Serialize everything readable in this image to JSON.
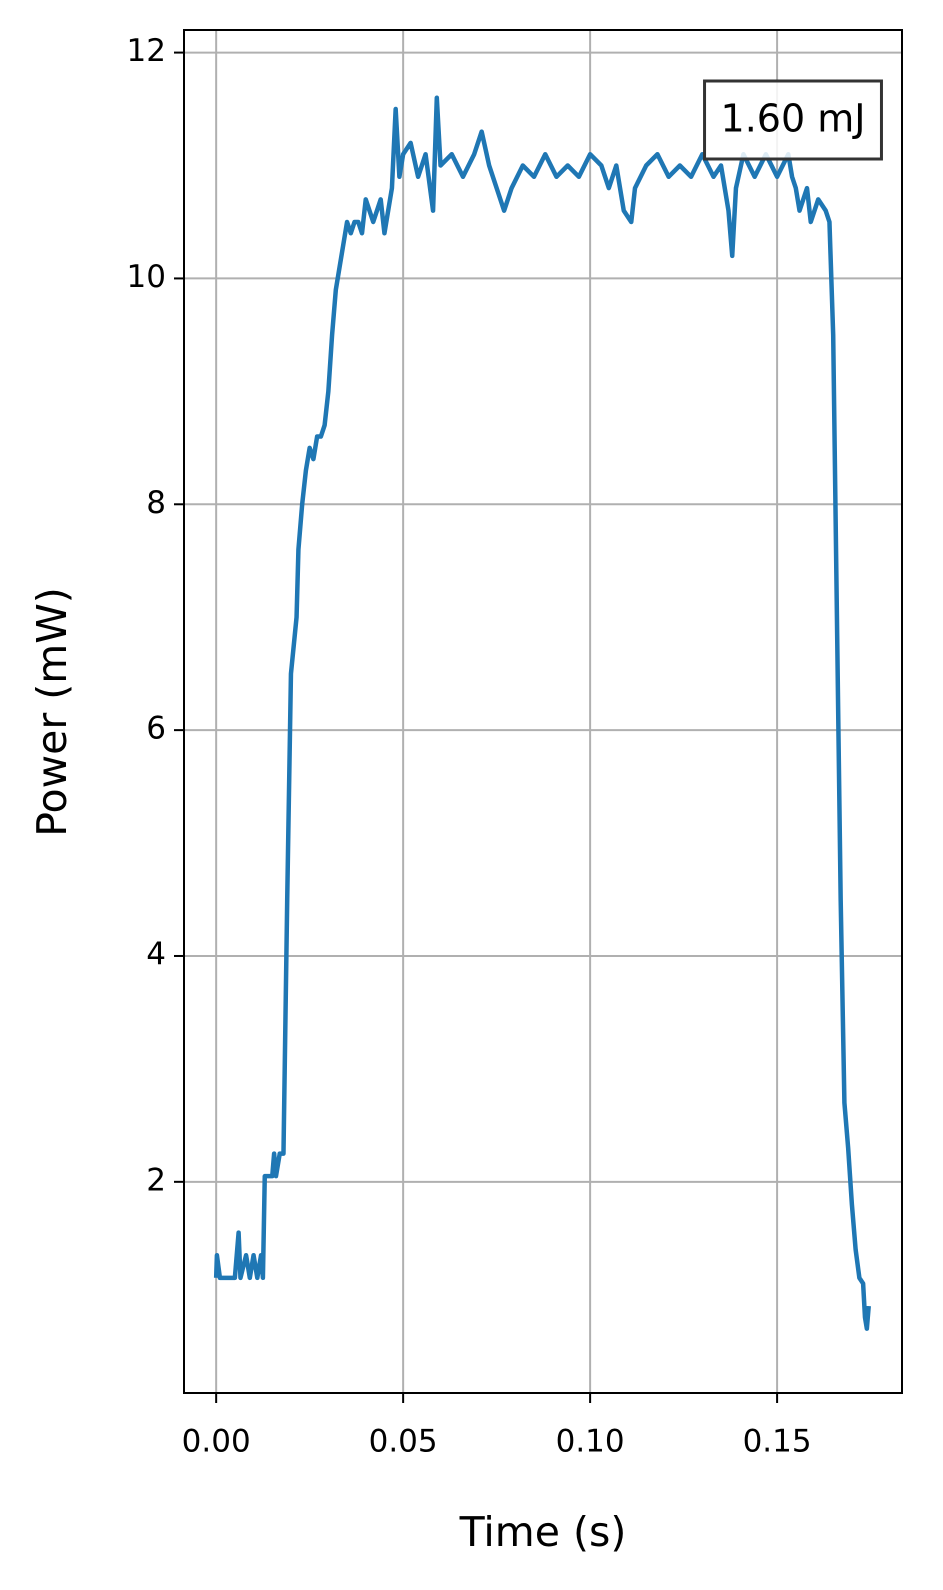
{
  "chart_data": {
    "type": "line",
    "xlabel": "Time (s)",
    "ylabel": "Power (mW)",
    "annotation": "1.60 mJ",
    "color": "#1f77b4",
    "grid": true,
    "xlim": [
      -0.0086,
      0.1834
    ],
    "ylim": [
      0.13,
      12.2
    ],
    "xticks": [
      {
        "value": 0,
        "label": "0.00"
      },
      0.05,
      {
        "value": 0.1,
        "label": "0.10"
      },
      0.15
    ],
    "yticks": [
      2,
      4,
      6,
      8,
      10,
      12
    ],
    "x": [
      0,
      0.0002,
      0.001,
      0.005,
      0.006,
      0.0065,
      0.008,
      0.009,
      0.01,
      0.011,
      0.012,
      0.0125,
      0.013,
      0.015,
      0.0155,
      0.016,
      0.017,
      0.018,
      0.019,
      0.02,
      0.0215,
      0.022,
      0.023,
      0.024,
      0.025,
      0.026,
      0.027,
      0.028,
      0.029,
      0.03,
      0.031,
      0.032,
      0.033,
      0.034,
      0.035,
      0.036,
      0.037,
      0.038,
      0.039,
      0.04,
      0.042,
      0.044,
      0.045,
      0.046,
      0.047,
      0.048,
      0.049,
      0.05,
      0.052,
      0.054,
      0.056,
      0.058,
      0.059,
      0.06,
      0.063,
      0.066,
      0.069,
      0.071,
      0.073,
      0.075,
      0.077,
      0.079,
      0.082,
      0.085,
      0.088,
      0.091,
      0.094,
      0.097,
      0.1,
      0.103,
      0.105,
      0.107,
      0.109,
      0.111,
      0.112,
      0.115,
      0.118,
      0.121,
      0.124,
      0.127,
      0.13,
      0.133,
      0.135,
      0.137,
      0.138,
      0.139,
      0.141,
      0.144,
      0.147,
      0.15,
      0.153,
      0.154,
      0.155,
      0.156,
      0.158,
      0.159,
      0.161,
      0.163,
      0.164,
      0.165,
      0.166,
      0.167,
      0.168,
      0.169,
      0.17,
      0.171,
      0.172,
      0.173,
      0.1735,
      0.174,
      0.1745
    ],
    "values": [
      1.15,
      1.35,
      1.15,
      1.15,
      1.55,
      1.15,
      1.35,
      1.15,
      1.35,
      1.15,
      1.35,
      1.15,
      2.05,
      2.05,
      2.25,
      2.05,
      2.25,
      2.25,
      4.5,
      6.5,
      7.0,
      7.6,
      8.0,
      8.3,
      8.5,
      8.4,
      8.6,
      8.6,
      8.7,
      9.0,
      9.5,
      9.9,
      10.1,
      10.3,
      10.5,
      10.4,
      10.5,
      10.5,
      10.4,
      10.7,
      10.5,
      10.7,
      10.4,
      10.6,
      10.8,
      11.5,
      10.9,
      11.1,
      11.2,
      10.9,
      11.1,
      10.6,
      11.6,
      11.0,
      11.1,
      10.9,
      11.1,
      11.3,
      11.0,
      10.8,
      10.6,
      10.8,
      11.0,
      10.9,
      11.1,
      10.9,
      11.0,
      10.9,
      11.1,
      11.0,
      10.8,
      11.0,
      10.6,
      10.5,
      10.8,
      11.0,
      11.1,
      10.9,
      11.0,
      10.9,
      11.1,
      10.9,
      11.0,
      10.6,
      10.2,
      10.8,
      11.1,
      10.9,
      11.1,
      10.9,
      11.1,
      10.9,
      10.8,
      10.6,
      10.8,
      10.5,
      10.7,
      10.6,
      10.5,
      9.5,
      7.0,
      4.5,
      2.7,
      2.3,
      1.8,
      1.4,
      1.15,
      1.1,
      0.8,
      0.7,
      0.9
    ]
  }
}
